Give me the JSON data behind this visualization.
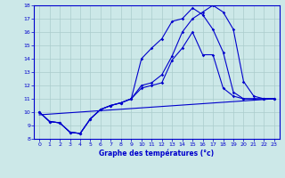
{
  "xlabel": "Graphe des températures (°c)",
  "xlim": [
    -0.5,
    23.5
  ],
  "ylim": [
    8,
    18
  ],
  "yticks": [
    8,
    9,
    10,
    11,
    12,
    13,
    14,
    15,
    16,
    17,
    18
  ],
  "xticks": [
    0,
    1,
    2,
    3,
    4,
    5,
    6,
    7,
    8,
    9,
    10,
    11,
    12,
    13,
    14,
    15,
    16,
    17,
    18,
    19,
    20,
    21,
    22,
    23
  ],
  "bg_color": "#cce8e8",
  "grid_color": "#aacccc",
  "line_color": "#0000cc",
  "lines": [
    {
      "x": [
        0,
        1,
        2,
        3,
        4,
        5,
        6,
        7,
        8,
        9,
        10,
        11,
        12,
        13,
        14,
        15,
        16,
        17,
        18,
        19,
        20,
        21,
        22,
        23
      ],
      "y": [
        10.0,
        9.3,
        9.2,
        8.5,
        8.4,
        9.5,
        10.2,
        10.5,
        10.7,
        11.0,
        11.8,
        12.0,
        12.2,
        13.9,
        14.8,
        16.0,
        14.3,
        14.3,
        11.8,
        11.2,
        11.0,
        11.0,
        11.0,
        11.0
      ],
      "marker": true
    },
    {
      "x": [
        0,
        1,
        2,
        3,
        4,
        5,
        6,
        7,
        8,
        9,
        10,
        11,
        12,
        13,
        14,
        15,
        16,
        17,
        18,
        19,
        20,
        21,
        22,
        23
      ],
      "y": [
        10.0,
        9.3,
        9.2,
        8.5,
        8.4,
        9.5,
        10.2,
        10.5,
        10.7,
        11.0,
        14.0,
        14.8,
        15.5,
        16.8,
        17.0,
        17.8,
        17.3,
        16.2,
        14.5,
        11.5,
        11.0,
        11.0,
        11.0,
        11.0
      ],
      "marker": true
    },
    {
      "x": [
        0,
        1,
        2,
        3,
        4,
        5,
        6,
        7,
        8,
        9,
        10,
        11,
        12,
        13,
        14,
        15,
        16,
        17,
        18,
        19,
        20,
        21,
        22,
        23
      ],
      "y": [
        10.0,
        9.3,
        9.2,
        8.5,
        8.4,
        9.5,
        10.2,
        10.5,
        10.7,
        11.0,
        12.0,
        12.2,
        12.8,
        14.2,
        16.0,
        17.0,
        17.5,
        18.0,
        17.5,
        16.2,
        12.3,
        11.2,
        11.0,
        11.0
      ],
      "marker": true
    },
    {
      "x": [
        0,
        23
      ],
      "y": [
        9.8,
        11.0
      ],
      "marker": false
    }
  ]
}
